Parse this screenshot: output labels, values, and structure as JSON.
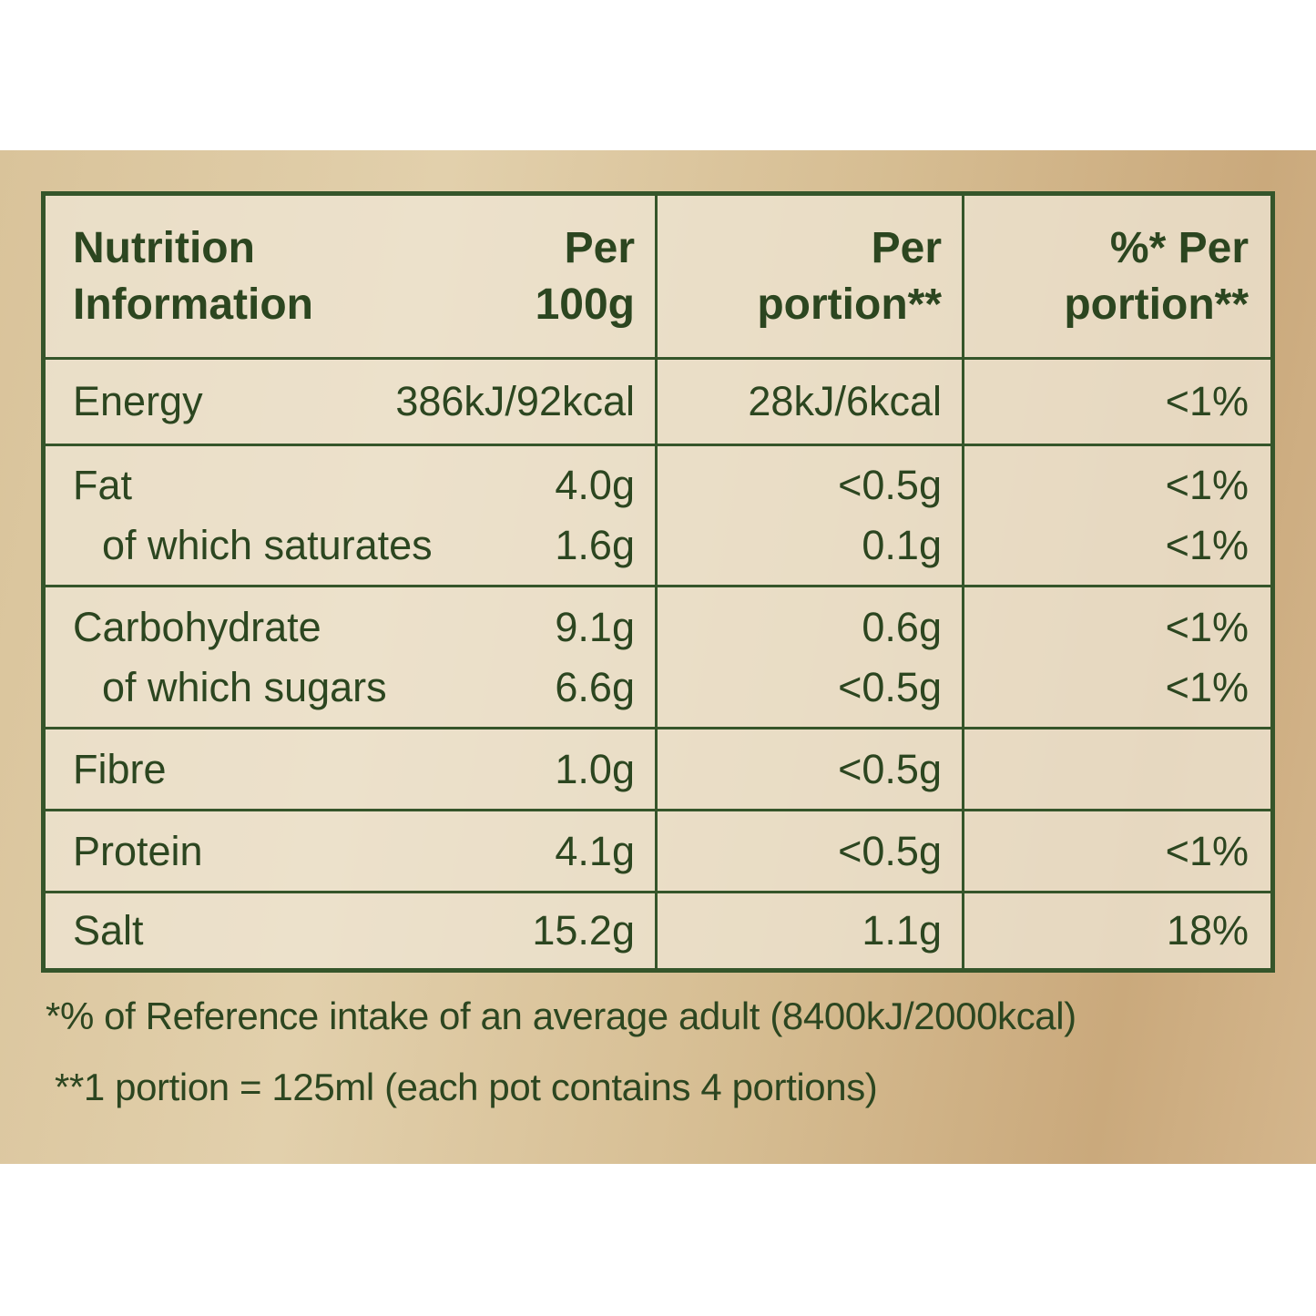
{
  "table": {
    "header": [
      [
        "Nutrition",
        "Information"
      ],
      [
        "Per",
        "100g"
      ],
      [
        "Per",
        "portion**"
      ],
      [
        "%* Per",
        "portion**"
      ]
    ],
    "rows": [
      [
        [
          "Energy",
          "386kJ/92kcal",
          "28kJ/6kcal",
          "<1%"
        ]
      ],
      [
        [
          "Fat",
          "4.0g",
          "<0.5g",
          "<1%"
        ],
        [
          "of which saturates",
          "1.6g",
          "0.1g",
          "<1%"
        ]
      ],
      [
        [
          "Carbohydrate",
          "9.1g",
          "0.6g",
          "<1%"
        ],
        [
          "of which sugars",
          "6.6g",
          "<0.5g",
          "<1%"
        ]
      ],
      [
        [
          "Fibre",
          "1.0g",
          "<0.5g",
          null
        ]
      ],
      [
        [
          "Protein",
          "4.1g",
          "<0.5g",
          "<1%"
        ]
      ],
      [
        [
          "Salt",
          "15.2g",
          "1.1g",
          "18%"
        ]
      ]
    ]
  },
  "footnotes": [
    "*% of Reference intake of an average adult (8400kJ/2000kcal)",
    "**1 portion = 125ml (each pot contains 4 portions)"
  ]
}
